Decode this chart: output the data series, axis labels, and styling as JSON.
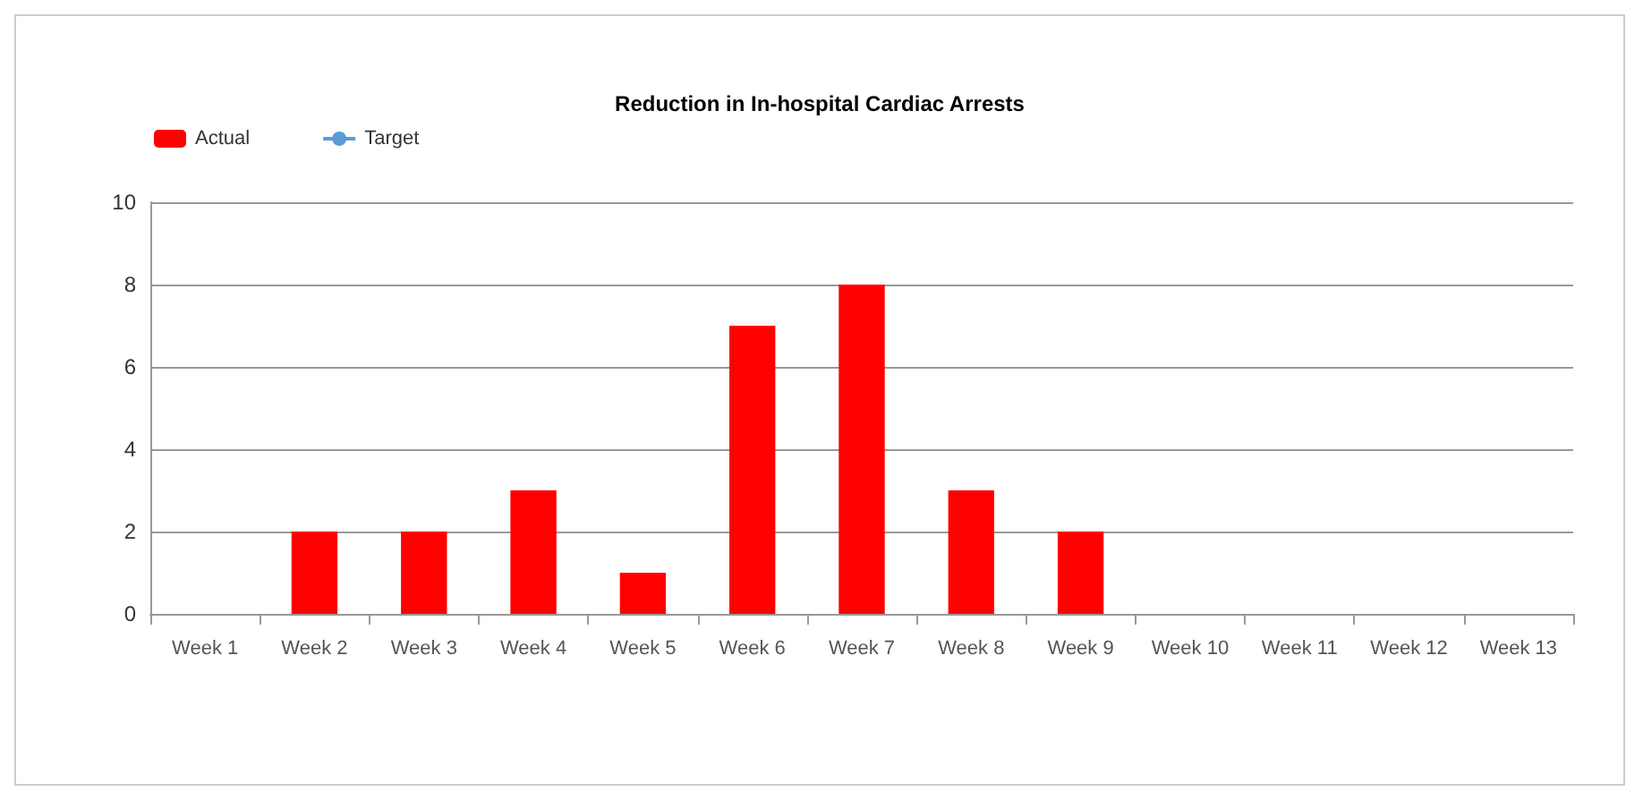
{
  "chart_data": {
    "type": "bar",
    "title": "Reduction in In-hospital Cardiac Arrests",
    "categories": [
      "Week 1",
      "Week 2",
      "Week 3",
      "Week 4",
      "Week 5",
      "Week 6",
      "Week 7",
      "Week 8",
      "Week 9",
      "Week 10",
      "Week 11",
      "Week 12",
      "Week 13"
    ],
    "series": [
      {
        "name": "Actual",
        "color": "#ff0000",
        "values": [
          null,
          2,
          2,
          3,
          1,
          7,
          8,
          3,
          2,
          null,
          null,
          null,
          null
        ]
      },
      {
        "name": "Target",
        "type": "line",
        "color": "#5b9bd5",
        "values": [
          null,
          null,
          null,
          null,
          null,
          null,
          null,
          null,
          null,
          null,
          null,
          null,
          null
        ]
      }
    ],
    "ylim": [
      0,
      10
    ],
    "yticks": [
      0,
      2,
      4,
      6,
      8,
      10
    ],
    "grid": "y",
    "legend": "top left"
  }
}
